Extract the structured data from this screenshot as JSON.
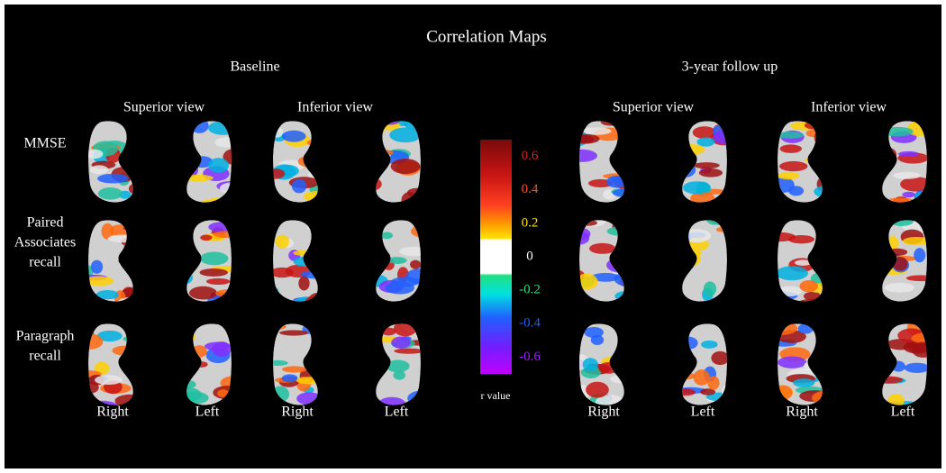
{
  "title": "Correlation Maps",
  "panels": [
    {
      "title": "Baseline",
      "views": [
        "Superior view",
        "Inferior view"
      ],
      "sides": [
        "Right",
        "Left",
        "Right",
        "Left"
      ]
    },
    {
      "title": "3-year follow up",
      "views": [
        "Superior view",
        "Inferior view"
      ],
      "sides": [
        "Right",
        "Left",
        "Right",
        "Left"
      ]
    }
  ],
  "rows": [
    [
      "MMSE"
    ],
    [
      "Paired",
      "Associates",
      "recall"
    ],
    [
      "Paragraph",
      "recall"
    ]
  ],
  "colorbar": {
    "label": "r value",
    "lim": [
      -0.7,
      0.7
    ],
    "ticks": [
      0.6,
      0.4,
      0.2,
      0,
      -0.2,
      -0.4,
      -0.6
    ],
    "tick_colors": [
      "#e02020",
      "#ff5020",
      "#ffe000",
      "#ffffff",
      "#20e080",
      "#2060ff",
      "#a020ff"
    ]
  }
}
